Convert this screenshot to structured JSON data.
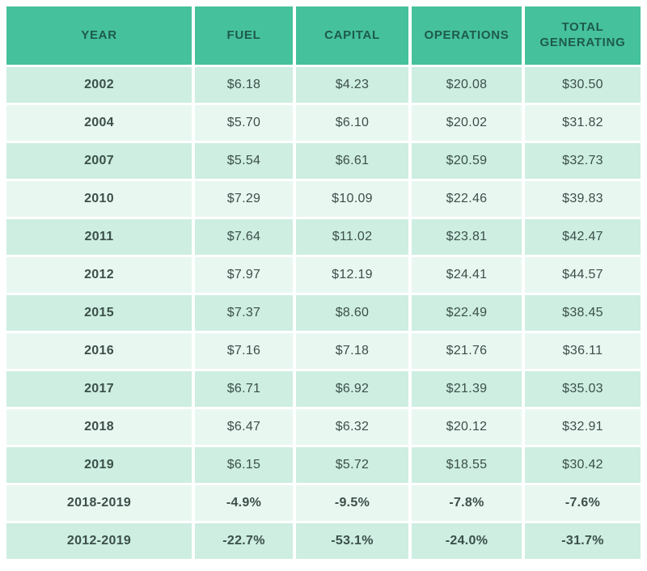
{
  "colors": {
    "header_bg": "#45c19c",
    "header_text": "#1e5a4d",
    "row_dark_bg": "#cdeee1",
    "row_light_bg": "#e9f7f1",
    "body_text": "#3c4f4a"
  },
  "chart_data": {
    "type": "table",
    "title": "",
    "columns": [
      "YEAR",
      "FUEL",
      "CAPITAL",
      "OPERATIONS",
      "TOTAL GENERATING"
    ],
    "rows": [
      {
        "label": "2002",
        "values": [
          "$6.18",
          "$4.23",
          "$20.08",
          "$30.50"
        ],
        "emphasis": false
      },
      {
        "label": "2004",
        "values": [
          "$5.70",
          "$6.10",
          "$20.02",
          "$31.82"
        ],
        "emphasis": false
      },
      {
        "label": "2007",
        "values": [
          "$5.54",
          "$6.61",
          "$20.59",
          "$32.73"
        ],
        "emphasis": false
      },
      {
        "label": "2010",
        "values": [
          "$7.29",
          "$10.09",
          "$22.46",
          "$39.83"
        ],
        "emphasis": false
      },
      {
        "label": "2011",
        "values": [
          "$7.64",
          "$11.02",
          "$23.81",
          "$42.47"
        ],
        "emphasis": false
      },
      {
        "label": "2012",
        "values": [
          "$7.97",
          "$12.19",
          "$24.41",
          "$44.57"
        ],
        "emphasis": false
      },
      {
        "label": "2015",
        "values": [
          "$7.37",
          "$8.60",
          "$22.49",
          "$38.45"
        ],
        "emphasis": false
      },
      {
        "label": "2016",
        "values": [
          "$7.16",
          "$7.18",
          "$21.76",
          "$36.11"
        ],
        "emphasis": false
      },
      {
        "label": "2017",
        "values": [
          "$6.71",
          "$6.92",
          "$21.39",
          "$35.03"
        ],
        "emphasis": false
      },
      {
        "label": "2018",
        "values": [
          "$6.47",
          "$6.32",
          "$20.12",
          "$32.91"
        ],
        "emphasis": false
      },
      {
        "label": "2019",
        "values": [
          "$6.15",
          "$5.72",
          "$18.55",
          "$30.42"
        ],
        "emphasis": false
      },
      {
        "label": "2018-2019",
        "values": [
          "-4.9%",
          "-9.5%",
          "-7.8%",
          "-7.6%"
        ],
        "emphasis": true
      },
      {
        "label": "2012-2019",
        "values": [
          "-22.7%",
          "-53.1%",
          "-24.0%",
          "-31.7%"
        ],
        "emphasis": true
      }
    ]
  }
}
